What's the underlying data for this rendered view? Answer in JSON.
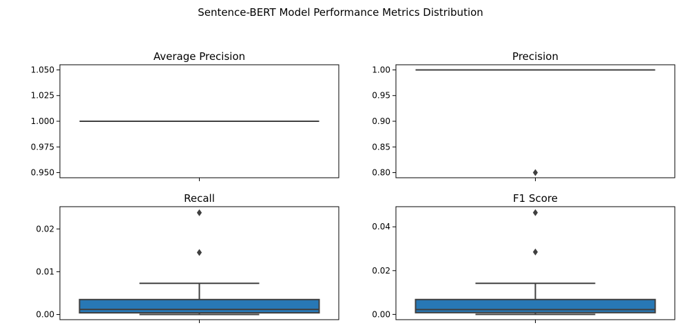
{
  "figure": {
    "suptitle": "Sentence-BERT Model Performance Metrics Distribution"
  },
  "colors": {
    "box_fill": "#2878b5",
    "line": "#3f3f3f",
    "axis": "#000000"
  },
  "chart_data": [
    {
      "type": "box",
      "title": "Average Precision",
      "ylim": [
        0.945,
        1.055
      ],
      "yticks": [
        0.95,
        0.975,
        1.0,
        1.025,
        1.05
      ],
      "ytick_labels": [
        "0.950",
        "0.975",
        "1.000",
        "1.025",
        "1.050"
      ],
      "stats": {
        "q1": 1.0,
        "median": 1.0,
        "q3": 1.0,
        "whisker_low": 1.0,
        "whisker_high": 1.0
      },
      "outliers": []
    },
    {
      "type": "box",
      "title": "Precision",
      "ylim": [
        0.79,
        1.01
      ],
      "yticks": [
        0.8,
        0.85,
        0.9,
        0.95,
        1.0
      ],
      "ytick_labels": [
        "0.80",
        "0.85",
        "0.90",
        "0.95",
        "1.00"
      ],
      "stats": {
        "q1": 1.0,
        "median": 1.0,
        "q3": 1.0,
        "whisker_low": 1.0,
        "whisker_high": 1.0
      },
      "outliers": [
        0.8
      ]
    },
    {
      "type": "box",
      "title": "Recall",
      "ylim": [
        -0.0012,
        0.0252
      ],
      "yticks": [
        0.0,
        0.01,
        0.02
      ],
      "ytick_labels": [
        "0.00",
        "0.01",
        "0.02"
      ],
      "stats": {
        "q1": 0.0004,
        "median": 0.0012,
        "q3": 0.0035,
        "whisker_low": 0.0,
        "whisker_high": 0.0073
      },
      "outliers": [
        0.0145,
        0.0238
      ]
    },
    {
      "type": "box",
      "title": "F1 Score",
      "ylim": [
        -0.0024,
        0.0492
      ],
      "yticks": [
        0.0,
        0.02,
        0.04
      ],
      "ytick_labels": [
        "0.00",
        "0.02",
        "0.04"
      ],
      "stats": {
        "q1": 0.0008,
        "median": 0.0022,
        "q3": 0.0068,
        "whisker_low": 0.0,
        "whisker_high": 0.0142
      },
      "outliers": [
        0.0285,
        0.0465
      ]
    }
  ]
}
